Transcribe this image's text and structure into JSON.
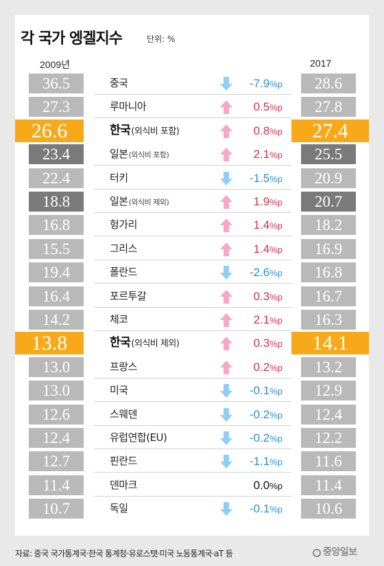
{
  "title": "각 국가 엥겔지수",
  "unit": "단위: %",
  "source": "자료: 중국 국가통계국·한국 통계청·유로스탯·미국 노동통계국·aT 등",
  "logo": "중앙일보",
  "colors": {
    "up": "#f7a8c2",
    "down": "#8fd0f2",
    "highlight": "#f7a91a",
    "dark": "#7a7a7a",
    "bar": "#b9b9b9"
  },
  "chart_data": {
    "type": "table",
    "title": "각 국가 엥겔지수",
    "unit": "%",
    "years": [
      "2009년",
      "2017"
    ],
    "rows": [
      {
        "country": "중국",
        "sub": "",
        "v2009": "36.5",
        "v2017": "28.6",
        "change": "-7.9",
        "pp": "%p",
        "dir": "down",
        "style": ""
      },
      {
        "country": "루마니아",
        "sub": "",
        "v2009": "27.3",
        "v2017": "27.8",
        "change": "0.5",
        "pp": "%p",
        "dir": "up",
        "style": ""
      },
      {
        "country": "한국",
        "sub": "(외식비 포함)",
        "v2009": "26.6",
        "v2017": "27.4",
        "change": "0.8",
        "pp": "%p",
        "dir": "up",
        "style": "hl"
      },
      {
        "country": "일본",
        "sub": "(외식비 포함)",
        "v2009": "23.4",
        "v2017": "25.5",
        "change": "2.1",
        "pp": "%p",
        "dir": "up",
        "style": "dark"
      },
      {
        "country": "터키",
        "sub": "",
        "v2009": "22.4",
        "v2017": "20.9",
        "change": "-1.5",
        "pp": "%p",
        "dir": "down",
        "style": ""
      },
      {
        "country": "일본",
        "sub": "(외식비 제외)",
        "v2009": "18.8",
        "v2017": "20.7",
        "change": "1.9",
        "pp": "%p",
        "dir": "up",
        "style": "dark"
      },
      {
        "country": "헝가리",
        "sub": "",
        "v2009": "16.8",
        "v2017": "18.2",
        "change": "1.4",
        "pp": "%p",
        "dir": "up",
        "style": ""
      },
      {
        "country": "그리스",
        "sub": "",
        "v2009": "15.5",
        "v2017": "16.9",
        "change": "1.4",
        "pp": "%p",
        "dir": "up",
        "style": ""
      },
      {
        "country": "폴란드",
        "sub": "",
        "v2009": "19.4",
        "v2017": "16.8",
        "change": "-2.6",
        "pp": "%p",
        "dir": "down",
        "style": ""
      },
      {
        "country": "포르투갈",
        "sub": "",
        "v2009": "16.4",
        "v2017": "16.7",
        "change": "0.3",
        "pp": "%p",
        "dir": "up",
        "style": ""
      },
      {
        "country": "체코",
        "sub": "",
        "v2009": "14.2",
        "v2017": "16.3",
        "change": "2.1",
        "pp": "%p",
        "dir": "up",
        "style": ""
      },
      {
        "country": "한국",
        "sub": "(외식비 제외)",
        "v2009": "13.8",
        "v2017": "14.1",
        "change": "0.3",
        "pp": "%p",
        "dir": "up",
        "style": "hl"
      },
      {
        "country": "프랑스",
        "sub": "",
        "v2009": "13.0",
        "v2017": "13.2",
        "change": "0.2",
        "pp": "%p",
        "dir": "up",
        "style": ""
      },
      {
        "country": "미국",
        "sub": "",
        "v2009": "13.0",
        "v2017": "12.9",
        "change": "-0.1",
        "pp": "%p",
        "dir": "down",
        "style": ""
      },
      {
        "country": "스웨덴",
        "sub": "",
        "v2009": "12.6",
        "v2017": "12.4",
        "change": "-0.2",
        "pp": "%p",
        "dir": "down",
        "style": ""
      },
      {
        "country": "유럽연합(EU)",
        "sub": "",
        "v2009": "12.4",
        "v2017": "12.2",
        "change": "-0.2",
        "pp": "%p",
        "dir": "down",
        "style": ""
      },
      {
        "country": "핀란드",
        "sub": "",
        "v2009": "12.7",
        "v2017": "11.6",
        "change": "-1.1",
        "pp": "%p",
        "dir": "down",
        "style": ""
      },
      {
        "country": "덴마크",
        "sub": "",
        "v2009": "11.4",
        "v2017": "11.4",
        "change": "0.0",
        "pp": "%p",
        "dir": "flat",
        "style": ""
      },
      {
        "country": "독일",
        "sub": "",
        "v2009": "10.7",
        "v2017": "10.6",
        "change": "-0.1",
        "pp": "%p",
        "dir": "down",
        "style": ""
      }
    ]
  }
}
